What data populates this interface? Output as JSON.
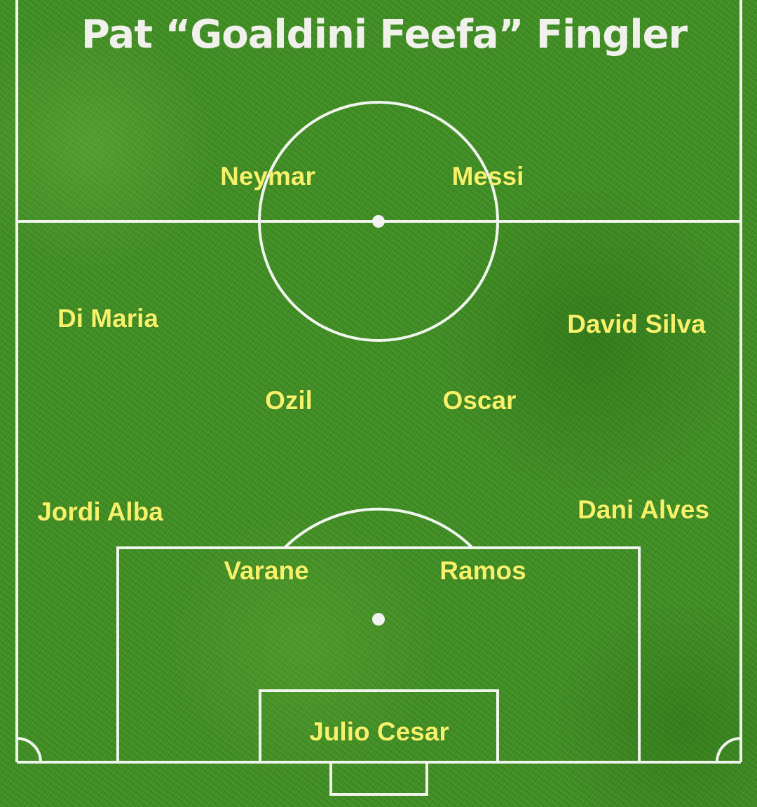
{
  "title": "Pat “Goaldini Feefa” Fingler",
  "colors": {
    "grass": "#3f8e22",
    "lines": "#ffffff",
    "player_text": "#f6f16a",
    "title_text": "#f1f1ec"
  },
  "players": {
    "neymar": "Neymar",
    "messi": "Messi",
    "di_maria": "Di Maria",
    "david_silva": "David Silva",
    "ozil": "Ozil",
    "oscar": "Oscar",
    "jordi_alba": "Jordi Alba",
    "dani_alves": "Dani Alves",
    "varane": "Varane",
    "ramos": "Ramos",
    "julio_cesar": "Julio Cesar"
  }
}
